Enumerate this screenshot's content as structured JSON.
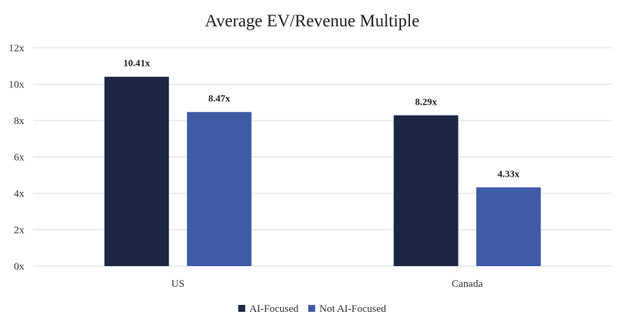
{
  "chart_data": {
    "type": "bar",
    "title": "Average EV/Revenue Multiple",
    "categories": [
      "US",
      "Canada"
    ],
    "series": [
      {
        "name": "AI-Focused",
        "values": [
          10.41,
          8.29
        ],
        "labels": [
          "10.41x",
          "8.29x"
        ],
        "color": "#1c2645"
      },
      {
        "name": "Not AI-Focused",
        "values": [
          8.47,
          4.33
        ],
        "labels": [
          "8.47x",
          "4.33x"
        ],
        "color": "#3f5ba6"
      }
    ],
    "yticks": [
      0,
      2,
      4,
      6,
      8,
      10,
      12
    ],
    "ytick_labels": [
      "0x",
      "2x",
      "4x",
      "6x",
      "8x",
      "10x",
      "12x"
    ],
    "ylim": [
      0,
      12
    ],
    "xlabel": "",
    "ylabel": "",
    "grid": true,
    "legend_position": "bottom-center",
    "gridline_color": "#d9d9d9"
  }
}
